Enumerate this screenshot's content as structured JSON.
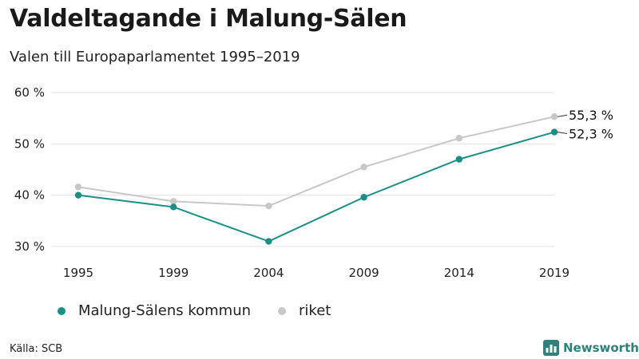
{
  "header": {
    "title": "Valdeltagande i Malung-Sälen",
    "subtitle": "Valen till Europaparlamentet 1995–2019"
  },
  "chart_data": {
    "type": "line",
    "title": "Valdeltagande i Malung-Sälen",
    "subtitle": "Valen till Europaparlamentet 1995–2019",
    "xlabel": "",
    "ylabel": "",
    "categories": [
      "1995",
      "1999",
      "2004",
      "2009",
      "2014",
      "2019"
    ],
    "ylim": [
      30,
      60
    ],
    "yticks": [
      30,
      40,
      50,
      60
    ],
    "ytick_labels": [
      "30 %",
      "40 %",
      "50 %",
      "60 %"
    ],
    "grid": true,
    "legend_position": "bottom-left",
    "series": [
      {
        "name": "Malung-Sälens kommun",
        "color": "#1a9085",
        "values": [
          40.0,
          37.7,
          31.0,
          39.6,
          47.0,
          52.3
        ],
        "end_label": "52,3 %"
      },
      {
        "name": "riket",
        "color": "#c8c8c8",
        "values": [
          41.6,
          38.8,
          37.9,
          45.5,
          51.1,
          55.3
        ],
        "end_label": "55,3 %"
      }
    ]
  },
  "footer": {
    "source": "Källa: SCB",
    "brand": "Newsworthy"
  },
  "colors": {
    "accent": "#1a9085",
    "secondary": "#c8c8c8",
    "grid": "#e3e3e3",
    "brand": "#2f7f7a"
  }
}
